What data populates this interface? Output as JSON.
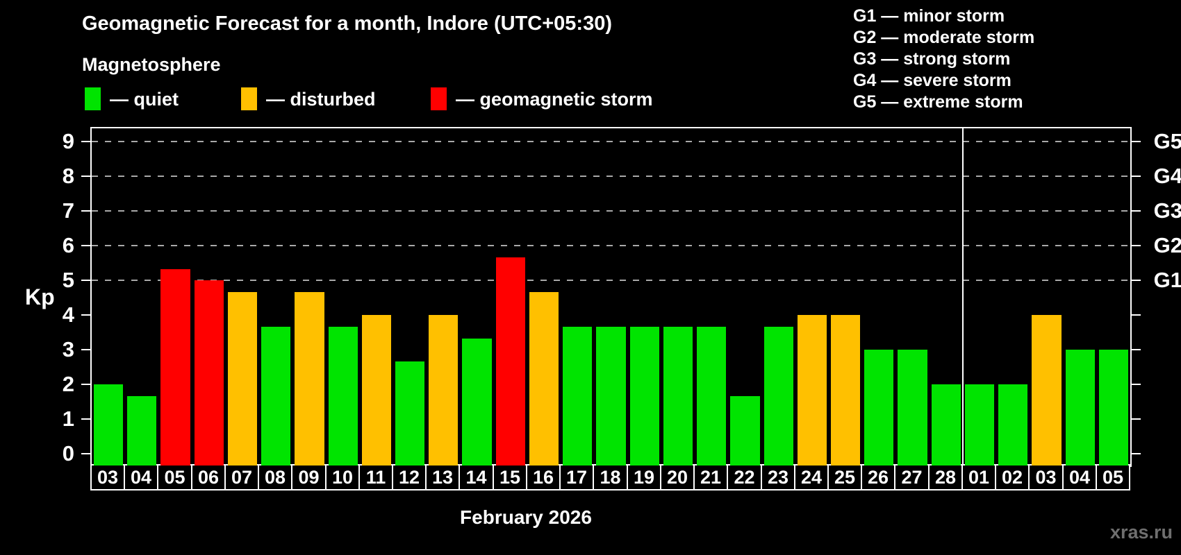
{
  "watermark": "xras.ru",
  "colors": {
    "quiet": "#00e400",
    "disturbed": "#ffc000",
    "storm": "#ff0000",
    "background": "#000000",
    "text": "#ffffff",
    "gridline": "#a9a9a9",
    "watermark": "#6f6f6f"
  },
  "legend": [
    {
      "status": "quiet",
      "label": "— quiet"
    },
    {
      "status": "disturbed",
      "label": "— disturbed"
    },
    {
      "status": "storm",
      "label": "— geomagnetic storm"
    }
  ],
  "g_scale": [
    "G1 — minor storm",
    "G2 — moderate storm",
    "G3 — strong storm",
    "G4 — severe storm",
    "G5 — extreme storm"
  ],
  "chart_data": {
    "type": "bar",
    "title": "Geomagnetic Forecast for a month, Indore (UTC+05:30)",
    "subtitle": "Magnetosphere",
    "xlabel": "February 2026",
    "ylabel": "Kp",
    "ylim": [
      0,
      9
    ],
    "yticks": [
      0,
      1,
      2,
      3,
      4,
      5,
      6,
      7,
      8,
      9
    ],
    "gridlines": [
      5,
      6,
      7,
      8,
      9
    ],
    "right_axis_labels": [
      {
        "value": 5,
        "label": "G1"
      },
      {
        "value": 6,
        "label": "G2"
      },
      {
        "value": 7,
        "label": "G3"
      },
      {
        "value": 8,
        "label": "G4"
      },
      {
        "value": 9,
        "label": "G5"
      }
    ],
    "legend_position": "top-left",
    "grid": "dashed horizontal at G-levels only",
    "month_separator_after_index": 25,
    "categories": [
      "03",
      "04",
      "05",
      "06",
      "07",
      "08",
      "09",
      "10",
      "11",
      "12",
      "13",
      "14",
      "15",
      "16",
      "17",
      "18",
      "19",
      "20",
      "21",
      "22",
      "23",
      "24",
      "25",
      "26",
      "27",
      "28",
      "01",
      "02",
      "03",
      "04",
      "05"
    ],
    "values": [
      2.0,
      1.67,
      5.33,
      5.0,
      4.67,
      3.67,
      4.67,
      3.67,
      4.0,
      2.67,
      4.0,
      3.33,
      5.67,
      4.67,
      3.67,
      3.67,
      3.67,
      3.67,
      3.67,
      1.67,
      3.67,
      4.0,
      4.0,
      3.0,
      3.0,
      2.0,
      2.0,
      2.0,
      4.0,
      3.0,
      3.0
    ],
    "statuses": [
      "quiet",
      "quiet",
      "storm",
      "storm",
      "disturbed",
      "quiet",
      "disturbed",
      "quiet",
      "disturbed",
      "quiet",
      "disturbed",
      "quiet",
      "storm",
      "disturbed",
      "quiet",
      "quiet",
      "quiet",
      "quiet",
      "quiet",
      "quiet",
      "quiet",
      "disturbed",
      "disturbed",
      "quiet",
      "quiet",
      "quiet",
      "quiet",
      "quiet",
      "disturbed",
      "quiet",
      "quiet"
    ]
  }
}
